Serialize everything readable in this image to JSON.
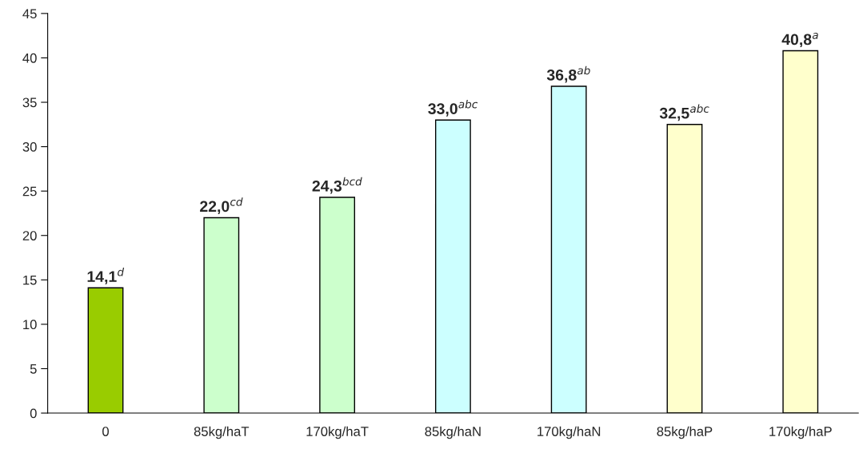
{
  "chart_data": {
    "type": "bar",
    "categories": [
      "0",
      "85kg/haT",
      "170kg/haT",
      "85kg/haN",
      "170kg/haN",
      "85kg/haP",
      "170kg/haP"
    ],
    "values": [
      14.1,
      22.0,
      24.3,
      33.0,
      36.8,
      32.5,
      40.8
    ],
    "colors": [
      "#99cc00",
      "#ccffcc",
      "#ccffcc",
      "#ccffff",
      "#ccffff",
      "#ffffcc",
      "#ffffcc"
    ],
    "value_labels": [
      "14,1$^{d}$",
      "22,0$^{cd}$",
      "24,3$^{bcd}$",
      "33,0$^{abc}$",
      "36,8$^{ab}$",
      "32,5$^{abc}$",
      "40,8$^{a}$"
    ],
    "ylim": [
      0,
      45
    ],
    "yticks": [
      0,
      5,
      10,
      15,
      20,
      25,
      30,
      35,
      40,
      45
    ],
    "grid": false,
    "legend": false
  }
}
